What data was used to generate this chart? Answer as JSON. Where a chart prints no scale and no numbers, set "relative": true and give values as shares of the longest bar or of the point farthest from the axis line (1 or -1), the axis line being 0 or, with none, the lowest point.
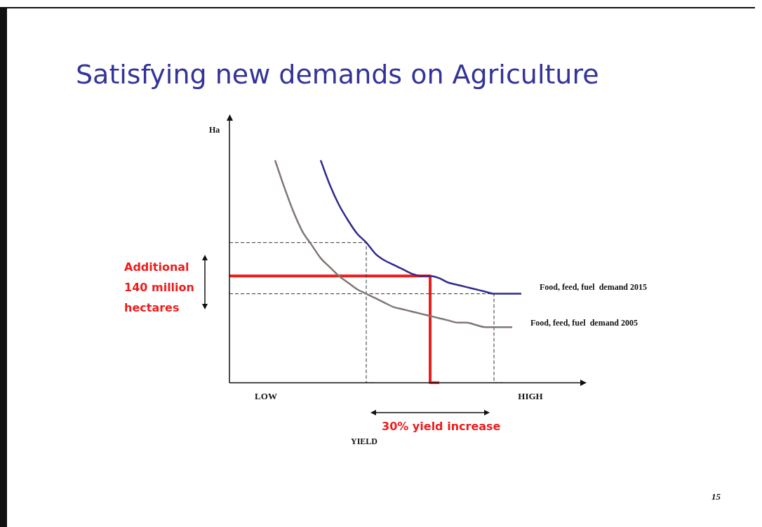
{
  "chart_data": {
    "type": "line",
    "title": "Satisfying new demands on Agriculture",
    "xlabel": "YIELD",
    "ylabel": "Ha",
    "relative": true,
    "legend": false,
    "grid": false,
    "marker": "none",
    "categories": [
      null,
      null,
      null,
      null,
      "LOW",
      null,
      null,
      null,
      null,
      null,
      null,
      null,
      null,
      null,
      null,
      null,
      null,
      null,
      null,
      null,
      null,
      null,
      null,
      null,
      null,
      null,
      null,
      null,
      null,
      null,
      null,
      null,
      null,
      "HIGH",
      null,
      null,
      null,
      null,
      null,
      null
    ],
    "series": [
      {
        "name": "Food, feed, fuel  demand 2015",
        "color": "#2e2a8c",
        "values": [
          null,
          null,
          null,
          null,
          null,
          null,
          null,
          null,
          null,
          null,
          1.0,
          0.89,
          0.8,
          0.73,
          0.67,
          0.63,
          0.58,
          0.55,
          0.53,
          0.51,
          0.49,
          0.48,
          0.48,
          0.47,
          0.45,
          0.44,
          0.43,
          0.42,
          0.41,
          0.4,
          0.4,
          0.4,
          0.4,
          null,
          null,
          null,
          null,
          null,
          null,
          null
        ]
      },
      {
        "name": "Food, feed, fuel  demand 2005",
        "color": "#7f7774",
        "values": [
          null,
          null,
          null,
          null,
          null,
          1.0,
          0.88,
          0.77,
          0.68,
          0.62,
          0.56,
          0.52,
          0.48,
          0.45,
          0.42,
          0.4,
          0.38,
          0.36,
          0.34,
          0.33,
          0.32,
          0.31,
          0.3,
          0.29,
          0.28,
          0.27,
          0.27,
          0.26,
          0.25,
          0.25,
          0.25,
          0.25,
          null,
          null,
          null,
          null,
          null,
          null,
          null,
          null
        ]
      },
      {
        "type": "step",
        "color": "#333333",
        "line_style": "dashed",
        "values": [
          0.63,
          0.63,
          0.63,
          0.63,
          0.63,
          0.63,
          0.63,
          0.63,
          0.63,
          0.63,
          0.63,
          0.63,
          0.63,
          0.63,
          0.63,
          0.63,
          0,
          null,
          null,
          null,
          null,
          null,
          null,
          null,
          null,
          null,
          null,
          null,
          null,
          null,
          null,
          null,
          null,
          null,
          null,
          null,
          null,
          null,
          null,
          null
        ]
      },
      {
        "type": "step",
        "color": "#333333",
        "line_style": "dashed",
        "values": [
          0.4,
          0.4,
          0.4,
          0.4,
          0.4,
          0.4,
          0.4,
          0.4,
          0.4,
          0.4,
          0.4,
          0.4,
          0.4,
          0.4,
          0.4,
          0.4,
          0.4,
          0.4,
          0.4,
          0.4,
          0.4,
          0.4,
          0.4,
          0.4,
          0.4,
          0.4,
          0.4,
          0.4,
          0.4,
          0.4,
          0,
          null,
          null,
          null,
          null,
          null,
          null,
          null,
          null,
          null
        ]
      },
      {
        "type": "step",
        "color": "#ee1c1c",
        "values": [
          0.48,
          0.48,
          0.48,
          0.48,
          0.48,
          0.48,
          0.48,
          0.48,
          0.48,
          0.48,
          0.48,
          0.48,
          0.48,
          0.48,
          0.48,
          0.48,
          0.48,
          0.48,
          0.48,
          0.48,
          0.48,
          0.48,
          0.48,
          0,
          null,
          null,
          null,
          null,
          null,
          null,
          null,
          null,
          null,
          null,
          null,
          null,
          null,
          null,
          null,
          null
        ]
      }
    ],
    "annotations": [
      "Additional 140 million hectares",
      "30% yield increase",
      "15"
    ]
  }
}
